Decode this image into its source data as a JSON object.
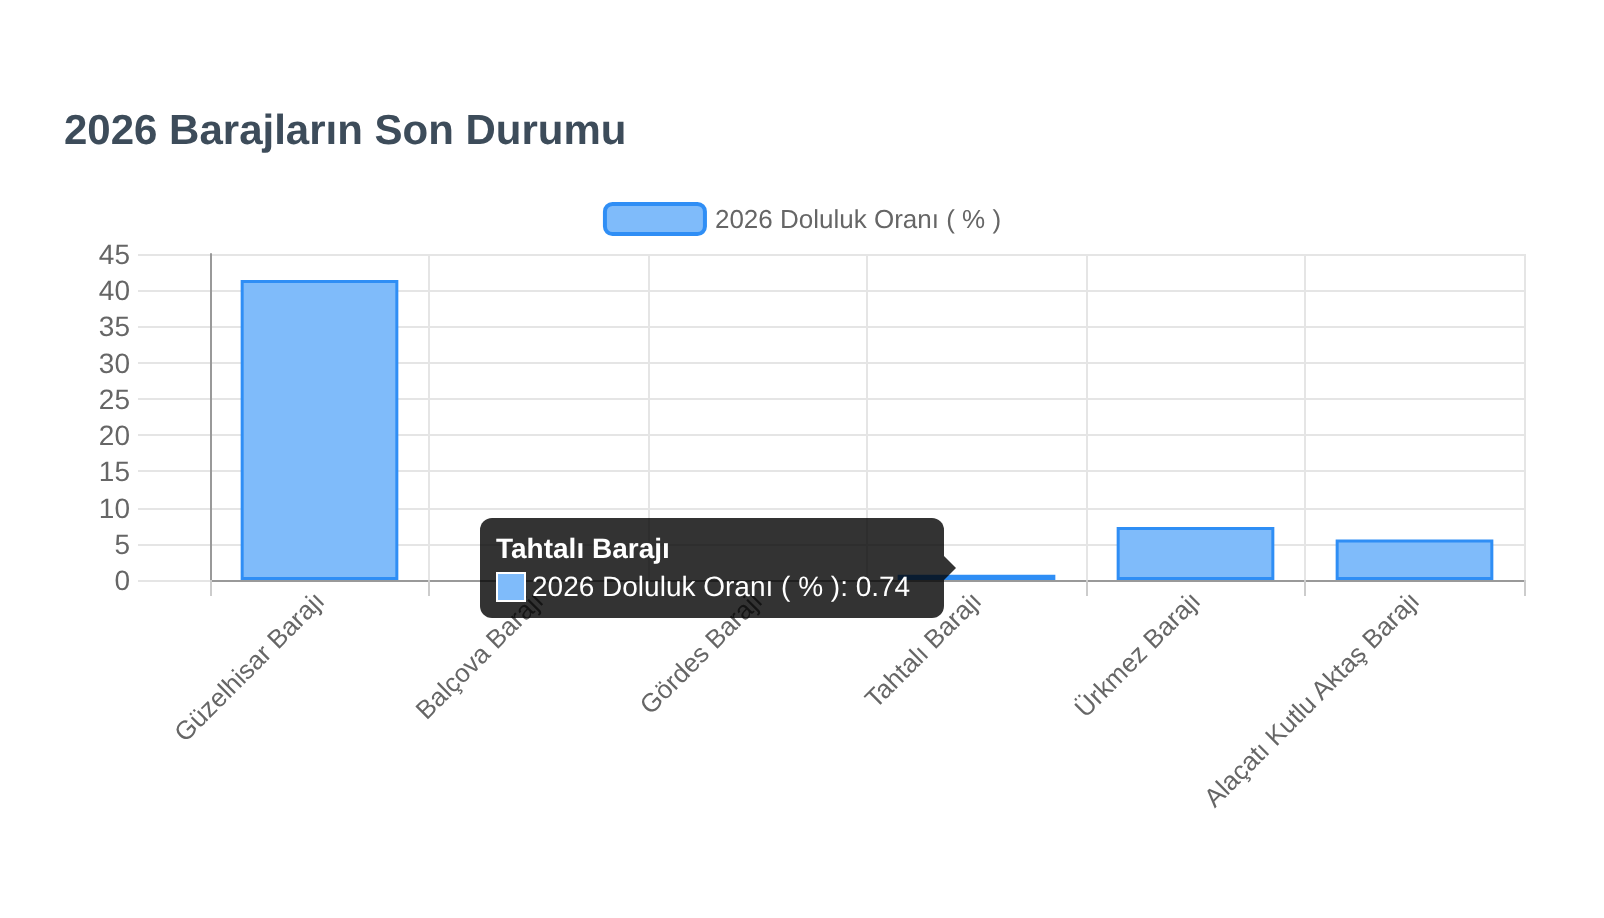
{
  "chart_data": {
    "type": "bar",
    "title": "2026 Barajların Son Durumu",
    "categories": [
      "Güzelhisar Barajı",
      "Balçova Barajı",
      "Gördes Barajı",
      "Tahtalı Barajı",
      "Ürkmez Barajı",
      "Alaçatı Kutlu Aktaş Barajı"
    ],
    "series": [
      {
        "name": "2026 Doluluk Oranı ( % )",
        "color": "#7fbbfa",
        "values": [
          41.4,
          null,
          null,
          0.74,
          7.3,
          5.6
        ]
      }
    ],
    "ylim": [
      0,
      45
    ],
    "yticks": [
      0,
      5,
      10,
      15,
      20,
      25,
      30,
      35,
      40,
      45
    ],
    "grid": true,
    "legend": "top",
    "annotations": [
      "Tahtalı Barajı",
      "2026 Doluluk Oranı ( % ): 0.74"
    ]
  }
}
